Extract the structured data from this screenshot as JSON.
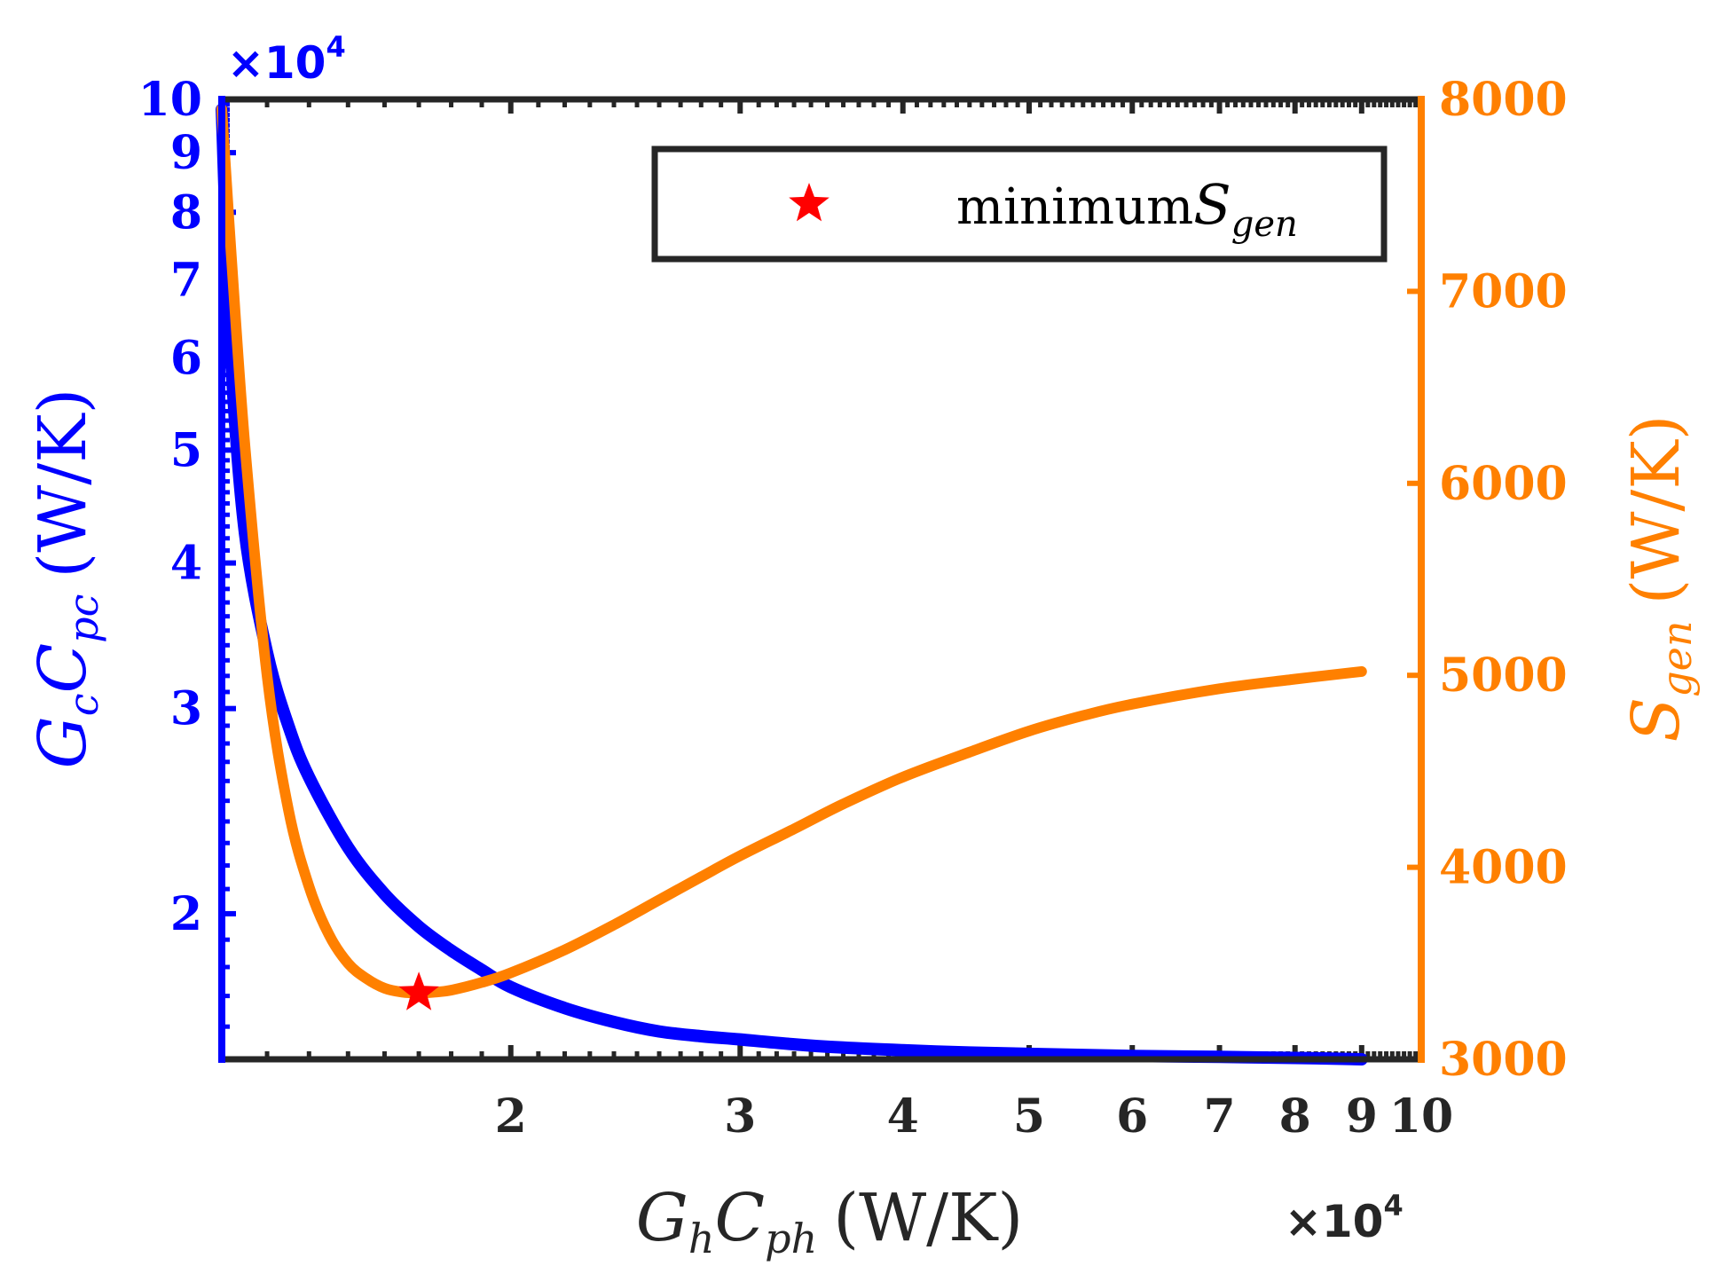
{
  "chart_data": {
    "type": "line",
    "title": "",
    "x_axis": {
      "label": "G_h C_ph (W/K)",
      "label_parts": {
        "main1": "G",
        "sub1": "h",
        "main2": "C",
        "sub2": "ph",
        "unit": "(W/K)"
      },
      "scale": "log",
      "range": [
        12000,
        100000
      ],
      "ticks": [
        20000,
        30000,
        40000,
        50000,
        60000,
        70000,
        80000,
        90000,
        100000
      ],
      "tick_labels": [
        "2",
        "3",
        "4",
        "5",
        "6",
        "7",
        "8",
        "9",
        "10"
      ],
      "exponent_label": "×10",
      "exponent": "4"
    },
    "y_left": {
      "label": "G_c C_pc (W/K)",
      "label_parts": {
        "main1": "G",
        "sub1": "c",
        "main2": "C",
        "sub2": "pc",
        "unit": "(W/K)"
      },
      "scale": "log",
      "range": [
        15000,
        100000
      ],
      "ticks": [
        20000,
        30000,
        40000,
        50000,
        60000,
        70000,
        80000,
        90000,
        100000
      ],
      "tick_labels": [
        "2",
        "3",
        "4",
        "5",
        "6",
        "7",
        "8",
        "9",
        "10"
      ],
      "exponent_label": "×10",
      "exponent": "4",
      "color": "#0000ff"
    },
    "y_right": {
      "label": "S_gen (W/K)",
      "label_parts": {
        "main": "S",
        "sub": "gen",
        "unit": "(W/K)"
      },
      "scale": "linear",
      "range": [
        3000,
        8000
      ],
      "ticks": [
        3000,
        4000,
        5000,
        6000,
        7000,
        8000
      ],
      "tick_labels": [
        "3000",
        "4000",
        "5000",
        "6000",
        "7000",
        "8000"
      ],
      "color": "#ff8000"
    },
    "series": [
      {
        "name": "G_c C_pc",
        "axis": "left",
        "color": "#0000ff",
        "x": [
          12000,
          12200,
          12500,
          13000,
          13500,
          14000,
          15000,
          16000,
          17000,
          18000,
          19000,
          20000,
          22000,
          24000,
          26000,
          28000,
          30000,
          33000,
          36000,
          40000,
          45000,
          50000,
          55000,
          60000,
          70000,
          80000,
          90000
        ],
        "y": [
          98000,
          60000,
          42500,
          33500,
          29000,
          26200,
          22800,
          20800,
          19500,
          18600,
          17900,
          17300,
          16600,
          16150,
          15850,
          15700,
          15600,
          15450,
          15350,
          15270,
          15200,
          15160,
          15130,
          15100,
          15070,
          15040,
          15000
        ]
      },
      {
        "name": "S_gen",
        "axis": "right",
        "color": "#ff8000",
        "x": [
          12000,
          12200,
          12500,
          13000,
          13500,
          14000,
          14500,
          15000,
          15500,
          16000,
          16500,
          17000,
          17500,
          18000,
          19000,
          20000,
          22000,
          24000,
          26000,
          28000,
          30000,
          33000,
          36000,
          40000,
          45000,
          50000,
          55000,
          60000,
          70000,
          80000,
          90000
        ],
        "y": [
          7950,
          7200,
          6200,
          5000,
          4300,
          3900,
          3650,
          3500,
          3420,
          3370,
          3350,
          3345,
          3350,
          3360,
          3400,
          3450,
          3570,
          3700,
          3830,
          3950,
          4060,
          4200,
          4330,
          4470,
          4600,
          4710,
          4790,
          4850,
          4930,
          4980,
          5020
        ]
      }
    ],
    "markers": [
      {
        "name": "minimum S_gen",
        "x": 17000,
        "y": 3345,
        "axis": "right",
        "symbol": "star",
        "color": "#ff0000"
      }
    ],
    "legend": {
      "position": "top-right",
      "entries": [
        {
          "text": "minimum",
          "sub_main": "S",
          "sub": "gen",
          "symbol": "star",
          "color": "#ff0000"
        }
      ]
    },
    "grid": false
  }
}
